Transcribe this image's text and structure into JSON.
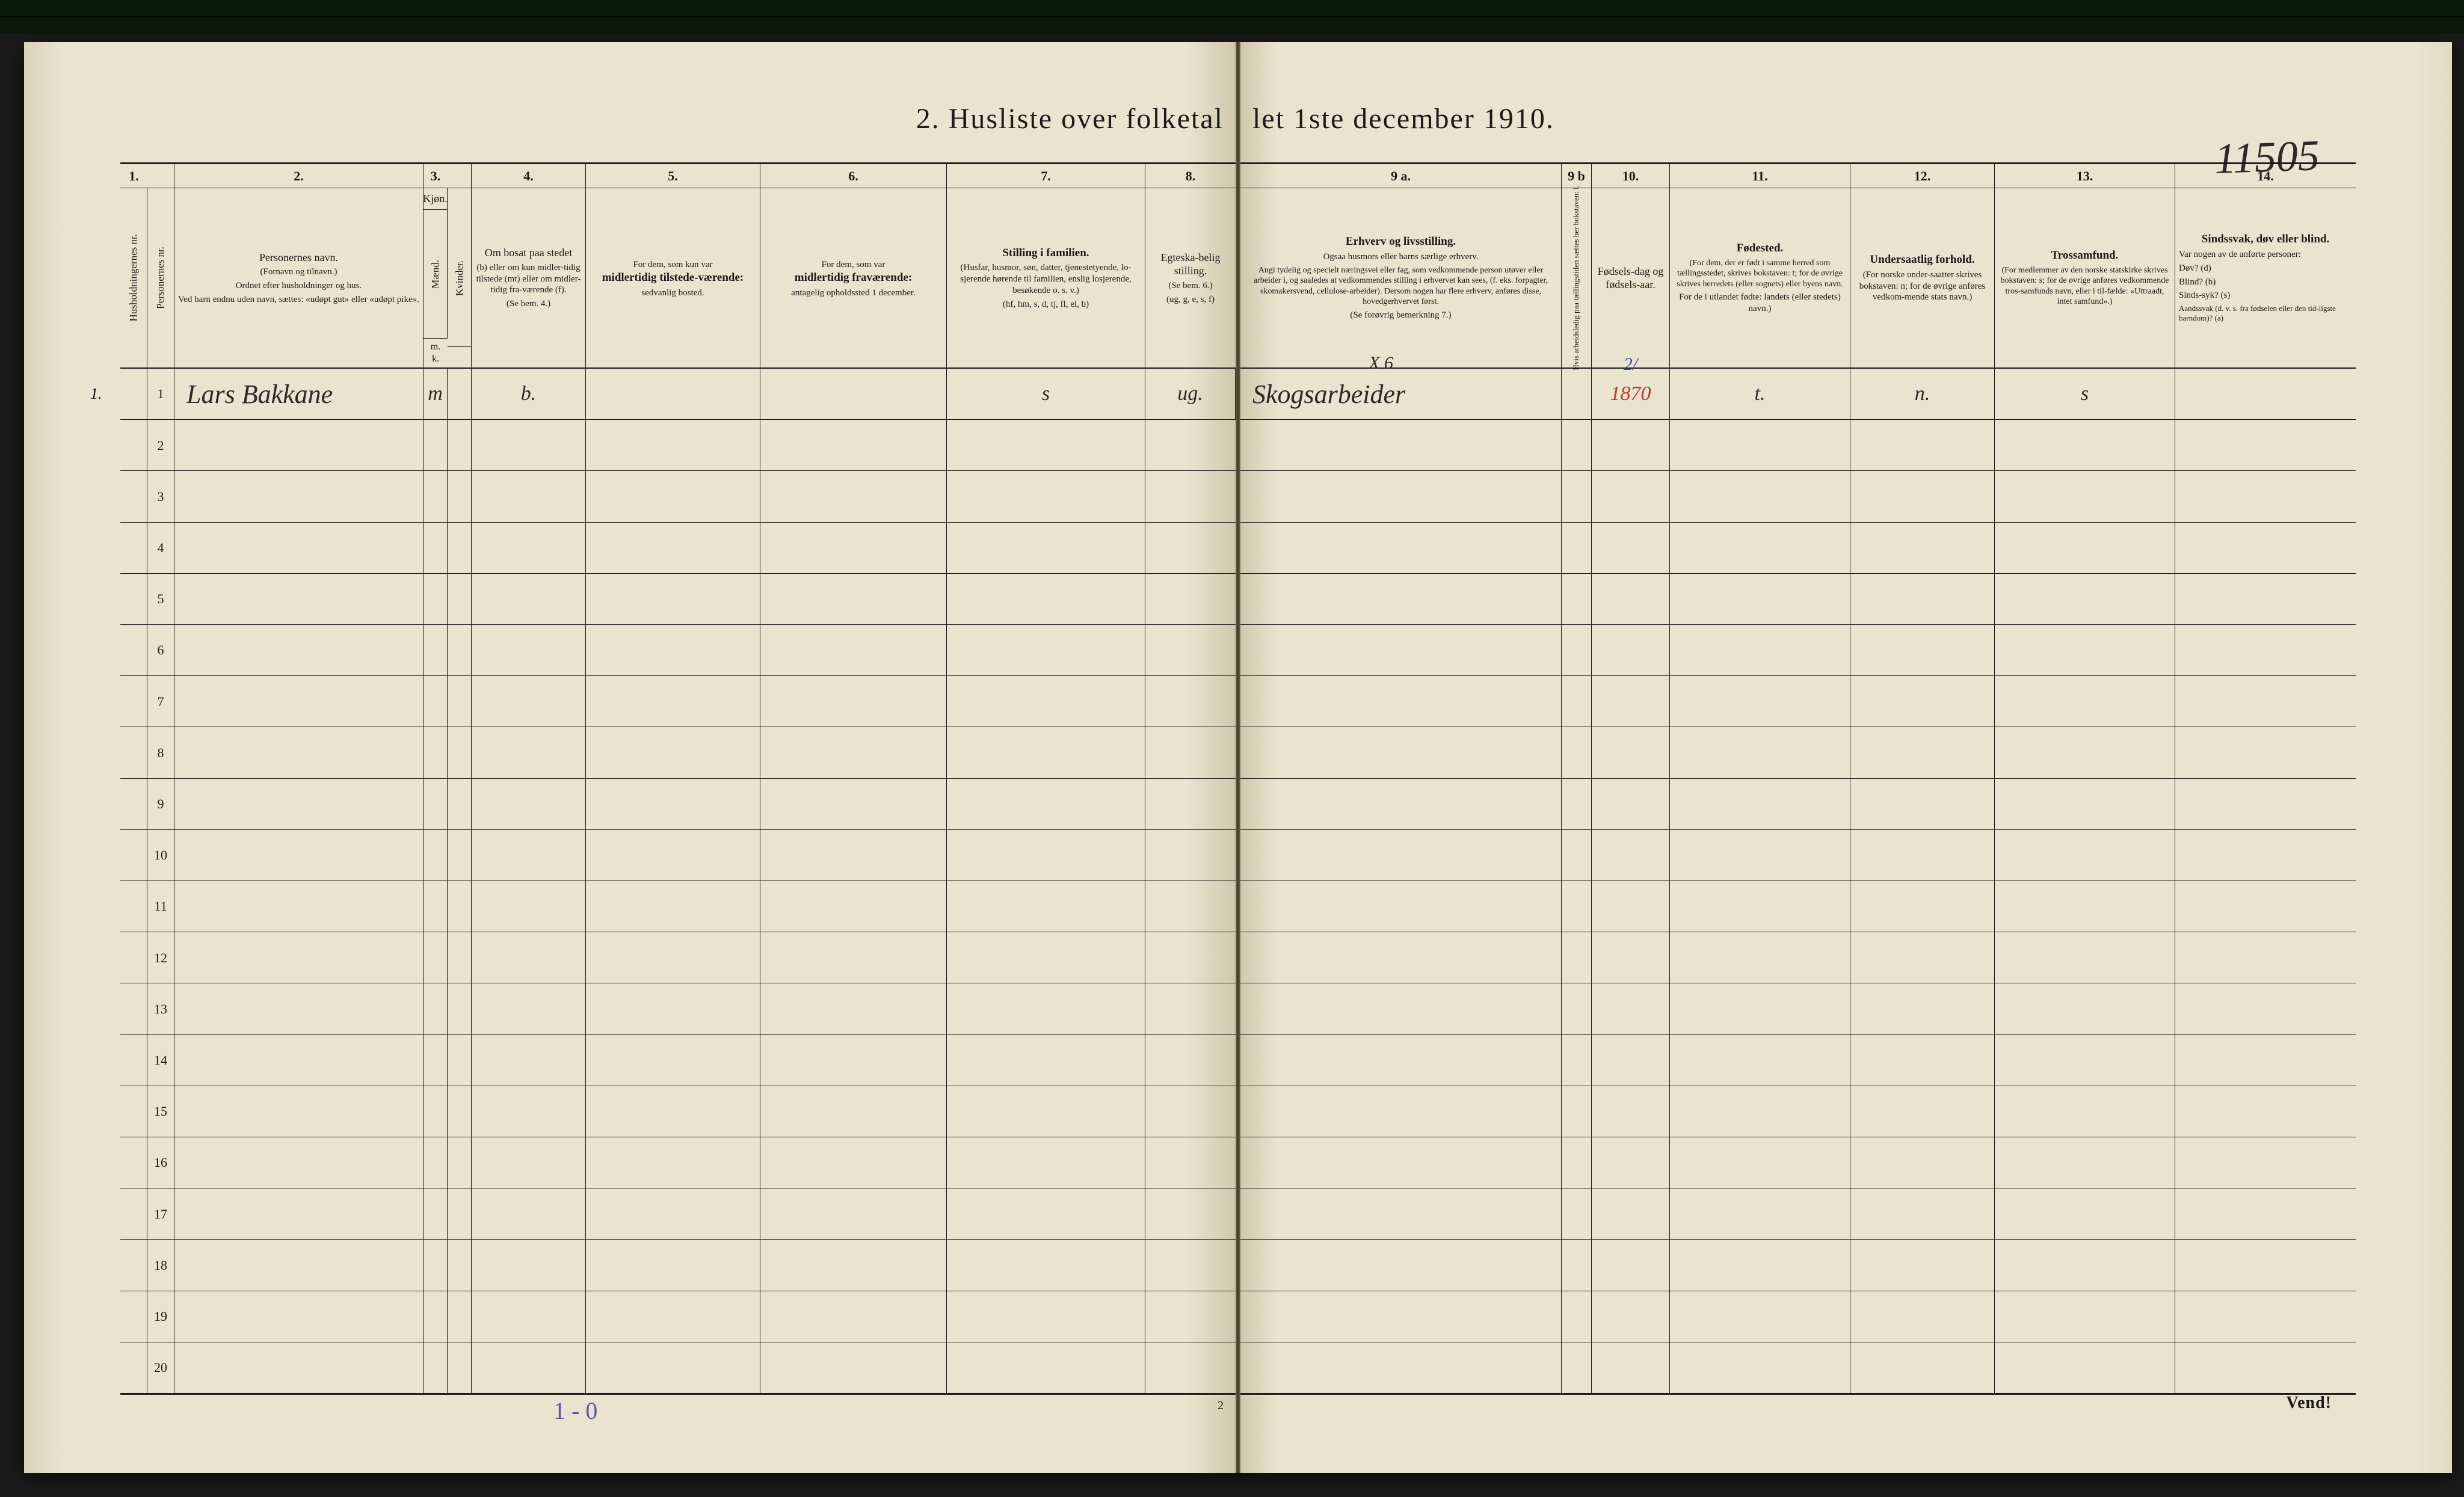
{
  "title_left": "2.   Husliste over folketal",
  "title_right": "let 1ste december 1910.",
  "handwritten_topright": "11505",
  "colnums_left": [
    "1.",
    "2.",
    "3.",
    "4.",
    "5.",
    "6.",
    "7.",
    "8."
  ],
  "colnums_right": [
    "9 a.",
    "9 b",
    "10.",
    "11.",
    "12.",
    "13.",
    "14."
  ],
  "headers_left": {
    "c1": "Husholdningernes nr.",
    "c1b": "Personernes nr.",
    "c2": {
      "main": "Personernes navn.",
      "sub1": "(Fornavn og tilnavn.)",
      "sub2": "Ordnet efter husholdninger og hus.",
      "sub3": "Ved barn endnu uden navn, sættes: «udøpt gut» eller «udøpt pike»."
    },
    "c3": {
      "top": "Kjøn.",
      "a": "Mænd.",
      "b": "Kvinder.",
      "bottom": "m. k."
    },
    "c4": {
      "top": "Om bosat paa stedet",
      "mid": "(b) eller om kun midler-tidig tilstede (mt) eller om midler-tidig fra-værende (f).",
      "bottom": "(Se bem. 4.)"
    },
    "c5": {
      "top": "For dem, som kun var",
      "bold": "midlertidig tilstede-værende:",
      "bottom": "sedvanlig bosted."
    },
    "c6": {
      "top": "For dem, som var",
      "bold": "midlertidig fraværende:",
      "bottom": "antagelig opholdssted 1 december."
    },
    "c7": {
      "bold": "Stilling i familien.",
      "mid": "(Husfar, husmor, søn, datter, tjenestetyende, lo-sjerende hørende til familien, enslig losjerende, besøkende o. s. v.)",
      "bottom": "(hf, hm, s, d, tj, fl, el, b)"
    },
    "c8": {
      "top": "Egteska-belig stilling.",
      "mid": "(Se bem. 6.)",
      "bottom": "(ug, g, e, s, f)"
    }
  },
  "headers_right": {
    "c9a": {
      "bold": "Erhverv og livsstilling.",
      "l1": "Ogsaa husmors eller barns særlige erhverv.",
      "l2": "Angi tydelig og specielt næringsvei eller fag, som vedkommende person utøver eller arbeider i, og saaledes at vedkommendes stilling i erhvervet kan sees, (f. eks. forpagter, skomakersvend, cellulose-arbeider). Dersom nogen har flere erhverv, anføres disse, hovedgerhvervet først.",
      "l3": "(Se forøvrig bemerkning 7.)"
    },
    "c9b": "Hvis arbeidsledig paa tællingstiden sættes her bokstaven: l.",
    "c10": {
      "top": "Fødsels-dag og fødsels-aar."
    },
    "c11": {
      "bold": "Fødested.",
      "mid": "(For dem, der er født i samme herred som tællingsstedet, skrives bokstaven: t; for de øvrige skrives herredets (eller sognets) eller byens navn.",
      "bottom": "For de i utlandet fødte: landets (eller stedets) navn.)"
    },
    "c12": {
      "bold": "Undersaatlig forhold.",
      "mid": "(For norske under-saatter skrives bokstaven: n; for de øvrige anføres vedkom-mende stats navn.)"
    },
    "c13": {
      "bold": "Trossamfund.",
      "mid": "(For medlemmer av den norske statskirke skrives bokstaven: s; for de øvrige anføres vedkommende tros-samfunds navn, eller i til-fælde: «Uttraadt, intet samfund».)"
    },
    "c14": {
      "bold": "Sindssvak, døv eller blind.",
      "top": "Var nogen av de anførte personer:",
      "lines": [
        "Døv?        (d)",
        "Blind?       (b)",
        "Sinds-syk? (s)",
        "Aandssvak (d. v. s. fra fødselen eller den tid-ligste barndom)? (a)"
      ]
    }
  },
  "rows": [
    {
      "hh": "1.",
      "pn": "1",
      "name": "Lars Bakkane",
      "sex": "m",
      "bosat": "b.",
      "col7": "s",
      "col8": "ug.",
      "col9a_top": "X 6",
      "col9a": "Skogsarbeider",
      "col10_top": "2/",
      "col10": "1870",
      "col11": "t.",
      "col12": "n.",
      "col13": "s"
    }
  ],
  "row_numbers": [
    "1",
    "2",
    "3",
    "4",
    "5",
    "6",
    "7",
    "8",
    "9",
    "10",
    "11",
    "12",
    "13",
    "14",
    "15",
    "16",
    "17",
    "18",
    "19",
    "20"
  ],
  "page_number": "2",
  "vend": "Vend!",
  "bottom_left_hw": "1 - 0",
  "colors": {
    "paper": "#e9e4cf",
    "ink": "#1a1a1a",
    "hw_black": "#2a2a2a",
    "hw_red": "#b83a2a",
    "hw_blue": "#3a4a9a",
    "bg": "#1a1a1a"
  }
}
